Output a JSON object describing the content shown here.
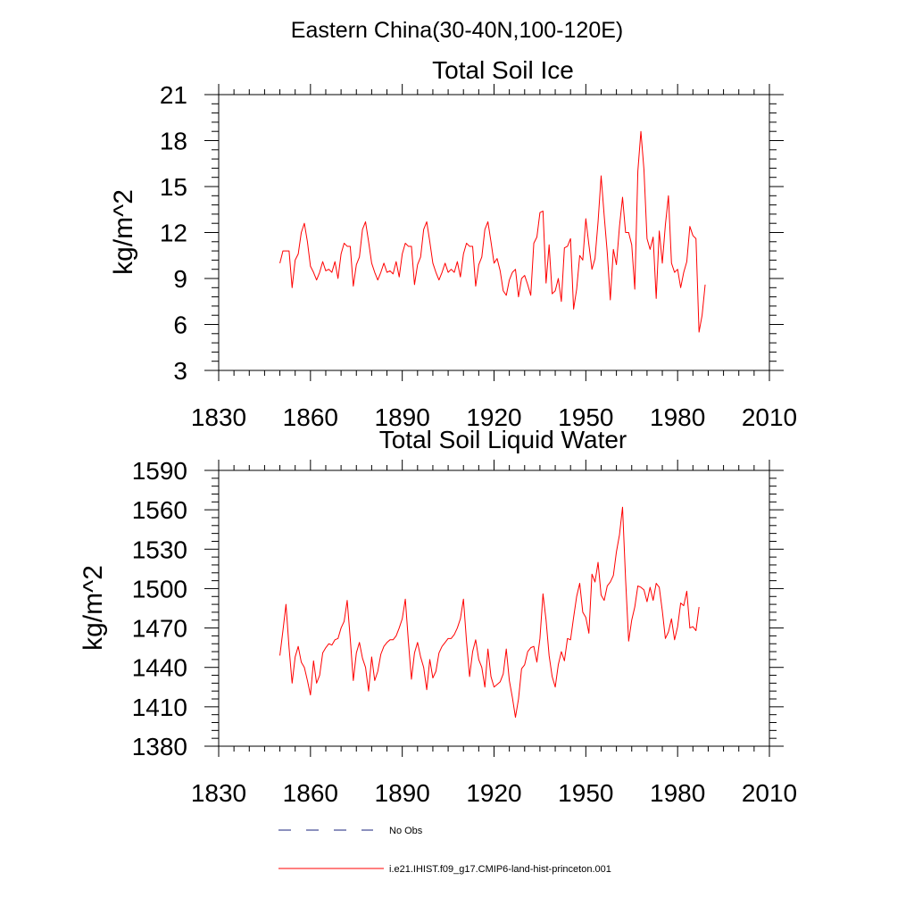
{
  "title": "Eastern China(30-40N,100-120E)",
  "legend": [
    {
      "label": "No Obs",
      "color": "#1a237e",
      "dash": true
    },
    {
      "label": "i.e21.IHIST.f09_g17.CMIP6-land-hist-princeton.001",
      "color": "#ff0000",
      "dash": false
    }
  ],
  "chart_data": [
    {
      "type": "line",
      "title": "Total Soil Ice",
      "ylabel": "kg/m^2",
      "xlim": [
        1830,
        2010
      ],
      "ylim": [
        3,
        21
      ],
      "xticks": [
        1830,
        1860,
        1890,
        1920,
        1950,
        1980,
        2010
      ],
      "yticks": [
        3,
        6,
        9,
        12,
        15,
        18,
        21
      ],
      "grid": false,
      "series": [
        {
          "name": "i.e21.IHIST.f09_g17.CMIP6-land-hist-princeton.001",
          "color": "#ff0000",
          "x_start": 1850,
          "values": [
            10.0,
            10.8,
            10.8,
            10.8,
            8.4,
            10.2,
            10.6,
            12.0,
            12.6,
            11.4,
            9.8,
            9.4,
            8.9,
            9.4,
            10.1,
            9.5,
            9.6,
            9.4,
            10.1,
            9.0,
            10.6,
            11.3,
            11.1,
            11.1,
            8.5,
            9.9,
            10.4,
            12.2,
            12.7,
            11.4,
            10.0,
            9.4,
            8.9,
            9.4,
            10.0,
            9.4,
            9.5,
            9.3,
            10.1,
            9.1,
            10.6,
            11.3,
            11.1,
            11.1,
            8.6,
            9.9,
            10.4,
            12.2,
            12.7,
            11.4,
            10.0,
            9.4,
            8.9,
            9.4,
            10.0,
            9.4,
            9.6,
            9.4,
            10.1,
            9.1,
            10.6,
            11.3,
            11.1,
            11.1,
            8.5,
            9.9,
            10.4,
            12.2,
            12.7,
            11.4,
            10.0,
            10.3,
            9.5,
            8.2,
            7.9,
            8.9,
            9.4,
            9.6,
            7.8,
            9.0,
            9.2,
            8.6,
            7.9,
            11.3,
            11.7,
            13.3,
            13.4,
            8.7,
            11.2,
            8.0,
            8.2,
            9.0,
            7.5,
            11.0,
            11.1,
            11.6,
            7.0,
            8.3,
            10.5,
            10.2,
            12.9,
            11.2,
            9.6,
            10.3,
            12.7,
            15.7,
            13.1,
            10.7,
            7.6,
            10.9,
            9.9,
            12.4,
            14.3,
            12.0,
            12.0,
            11.2,
            8.3,
            16.0,
            18.6,
            16.1,
            11.6,
            10.9,
            11.7,
            7.7,
            12.1,
            10.0,
            12.5,
            14.4,
            10.0,
            9.4,
            9.6,
            8.4,
            9.4,
            10.1,
            12.4,
            11.8,
            11.6,
            5.5,
            6.6,
            8.6
          ]
        }
      ]
    },
    {
      "type": "line",
      "title": "Total Soil Liquid Water",
      "ylabel": "kg/m^2",
      "xlim": [
        1830,
        2010
      ],
      "ylim": [
        1380,
        1590
      ],
      "xticks": [
        1830,
        1860,
        1890,
        1920,
        1950,
        1980,
        2010
      ],
      "yticks": [
        1380,
        1410,
        1440,
        1470,
        1500,
        1530,
        1560,
        1590
      ],
      "grid": false,
      "series": [
        {
          "name": "i.e21.IHIST.f09_g17.CMIP6-land-hist-princeton.001",
          "color": "#ff0000",
          "x_start": 1850,
          "values": [
            1449,
            1468,
            1488,
            1455,
            1428,
            1448,
            1456,
            1444,
            1440,
            1430,
            1419,
            1445,
            1428,
            1434,
            1451,
            1455,
            1458,
            1457,
            1461,
            1462,
            1470,
            1475,
            1491,
            1462,
            1430,
            1451,
            1459,
            1447,
            1440,
            1422,
            1448,
            1430,
            1437,
            1450,
            1456,
            1459,
            1461,
            1461,
            1464,
            1470,
            1477,
            1492,
            1460,
            1431,
            1451,
            1459,
            1448,
            1440,
            1423,
            1446,
            1432,
            1437,
            1451,
            1456,
            1459,
            1462,
            1462,
            1465,
            1470,
            1477,
            1492,
            1460,
            1433,
            1452,
            1461,
            1446,
            1440,
            1425,
            1454,
            1433,
            1425,
            1427,
            1429,
            1435,
            1454,
            1430,
            1417,
            1402,
            1416,
            1439,
            1442,
            1452,
            1455,
            1456,
            1444,
            1462,
            1496,
            1476,
            1449,
            1433,
            1425,
            1442,
            1452,
            1445,
            1462,
            1461,
            1478,
            1494,
            1504,
            1482,
            1478,
            1466,
            1511,
            1505,
            1520,
            1495,
            1491,
            1502,
            1505,
            1510,
            1528,
            1541,
            1562,
            1507,
            1460,
            1476,
            1486,
            1502,
            1501,
            1499,
            1490,
            1501,
            1491,
            1504,
            1501,
            1483,
            1462,
            1467,
            1477,
            1461,
            1471,
            1489,
            1487,
            1498,
            1470,
            1471,
            1468,
            1486
          ]
        }
      ]
    }
  ]
}
